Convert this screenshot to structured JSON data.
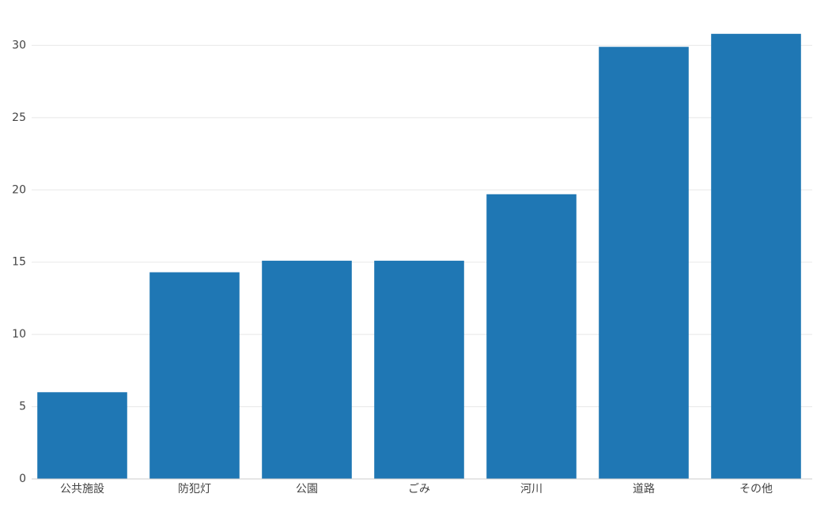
{
  "chart_data": {
    "type": "bar",
    "categories": [
      "公共施設",
      "防犯灯",
      "公園",
      "ごみ",
      "河川",
      "道路",
      "その他"
    ],
    "values": [
      6,
      14.3,
      15.1,
      15.1,
      19.7,
      29.9,
      30.8
    ],
    "color": "#1f77b4",
    "ylim": [
      0,
      31.5
    ],
    "yticks": [
      0,
      5,
      10,
      15,
      20,
      25,
      30
    ],
    "grid": true
  }
}
